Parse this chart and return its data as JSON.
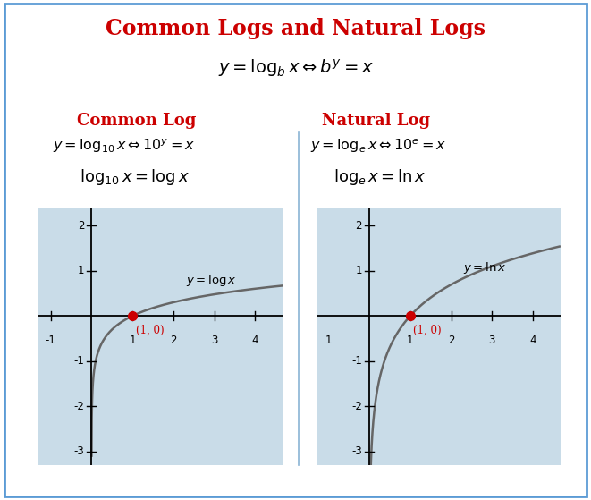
{
  "title": "Common Logs and Natural Logs",
  "title_color": "#CC0000",
  "title_fontsize": 17,
  "bg_color": "#ffffff",
  "border_color": "#5B9BD5",
  "plot_bg_color": "#C9DCE8",
  "main_formula": "$y = \\log_b x \\Leftrightarrow b^y = x$",
  "left_header": "Common Log",
  "right_header": "Natural Log",
  "header_color": "#CC0000",
  "left_formula1": "$y = \\log_{10} x \\Leftrightarrow 10^y = x$",
  "left_formula2": "$\\log_{10} x = \\log x$",
  "right_formula1": "$y = \\log_e x \\Leftrightarrow 10^e = x$",
  "right_formula2": "$\\log_e x = \\ln x$",
  "left_curve_label": "$y = \\log x$",
  "right_curve_label": "$y = \\ln x$",
  "point_label": "(1, 0)",
  "point_color": "#CC0000",
  "curve_color": "#666666",
  "axis_color": "#000000",
  "xlim_left": [
    -1.3,
    4.7
  ],
  "xlim_right": [
    -1.3,
    4.7
  ],
  "ylim": [
    -3.3,
    2.4
  ],
  "divider_color": "#8AB4D4"
}
